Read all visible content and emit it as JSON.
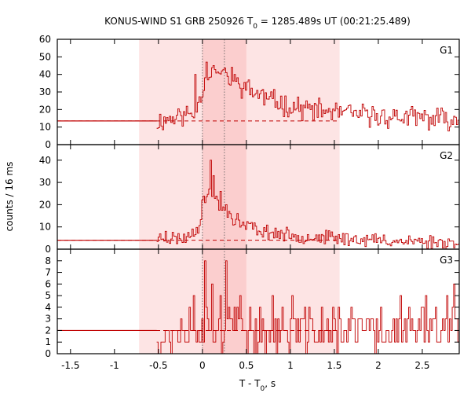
{
  "chart_data": {
    "type": "line",
    "title": "KONUS-WIND S1 GRB 250926 T",
    "title_sub": "0",
    "title_rest": " = 1285.489s UT (00:21:25.489)",
    "xlabel": "T - T",
    "xlabel_sub": "0",
    "xlabel_rest": ", s",
    "ylabel": "counts / 16 ms",
    "xlim": [
      -1.65,
      2.92
    ],
    "x_ticks": [
      -1.5,
      -1,
      -0.5,
      0,
      0.5,
      1,
      1.5,
      2,
      2.5
    ],
    "x_tick_labels": [
      "-1.5",
      "-1",
      "-0.5",
      "0",
      "0.5",
      "1",
      "1.5",
      "2",
      "2.5"
    ],
    "shading": {
      "outer_interval": [
        -0.72,
        1.56
      ],
      "inner_interval": [
        0.0,
        0.5
      ],
      "outer_color": "#fde4e4",
      "inner_color": "#fbcece"
    },
    "vertical_markers": [
      0.0,
      0.25
    ],
    "line_color": "#c00000",
    "panels": [
      {
        "name": "G1",
        "ylim": [
          0,
          60
        ],
        "y_ticks": [
          0,
          10,
          20,
          30,
          40,
          50,
          60
        ],
        "y_tick_labels": [
          "0",
          "10",
          "20",
          "30",
          "40",
          "50",
          "60"
        ],
        "background_level": 13.5,
        "data_start": -0.52,
        "key_points": [
          [
            -0.52,
            13
          ],
          [
            -0.3,
            16
          ],
          [
            -0.1,
            18
          ],
          [
            0.0,
            33
          ],
          [
            0.08,
            42
          ],
          [
            0.16,
            40
          ],
          [
            0.28,
            38
          ],
          [
            0.4,
            34
          ],
          [
            0.5,
            32
          ],
          [
            0.7,
            27
          ],
          [
            0.9,
            23
          ],
          [
            1.2,
            20
          ],
          [
            1.56,
            18
          ],
          [
            2.0,
            16
          ],
          [
            2.5,
            15
          ],
          [
            2.92,
            14
          ]
        ],
        "noise_amp": 5,
        "spikes": [
          [
            -0.08,
            40
          ],
          [
            0.04,
            47
          ],
          [
            0.12,
            45
          ],
          [
            0.22,
            42
          ],
          [
            0.33,
            44
          ],
          [
            0.38,
            36
          ],
          [
            0.45,
            32
          ]
        ],
        "seed": 11
      },
      {
        "name": "G2",
        "ylim": [
          0,
          47
        ],
        "y_ticks": [
          0,
          10,
          20,
          30,
          40
        ],
        "y_tick_labels": [
          "0",
          "10",
          "20",
          "30",
          "40"
        ],
        "background_level": 4,
        "data_start": -0.52,
        "key_points": [
          [
            -0.52,
            5
          ],
          [
            -0.2,
            5
          ],
          [
            -0.05,
            10
          ],
          [
            0.0,
            22
          ],
          [
            0.08,
            26
          ],
          [
            0.15,
            22
          ],
          [
            0.25,
            17
          ],
          [
            0.35,
            13
          ],
          [
            0.5,
            10
          ],
          [
            0.7,
            8
          ],
          [
            1.0,
            6
          ],
          [
            1.5,
            5
          ],
          [
            2.0,
            4
          ],
          [
            2.92,
            3
          ]
        ],
        "noise_amp": 2.5,
        "spikes": [
          [
            0.09,
            40
          ],
          [
            0.12,
            33
          ],
          [
            0.2,
            26
          ],
          [
            0.26,
            20
          ],
          [
            0.3,
            17
          ],
          [
            0.4,
            16
          ],
          [
            0.55,
            12
          ],
          [
            -0.42,
            8
          ]
        ],
        "seed": 23
      },
      {
        "name": "G3",
        "ylim": [
          0,
          9
        ],
        "y_ticks": [
          0,
          1,
          2,
          3,
          4,
          5,
          6,
          7,
          8
        ],
        "y_tick_labels": [
          "0",
          "1",
          "2",
          "3",
          "4",
          "5",
          "6",
          "7",
          "8"
        ],
        "background_level": 2,
        "data_start": -0.52,
        "key_points": [
          [
            -0.52,
            1.5
          ],
          [
            0.0,
            2.5
          ],
          [
            0.3,
            2.3
          ],
          [
            0.6,
            2
          ],
          [
            1.0,
            2
          ],
          [
            2.92,
            2
          ]
        ],
        "noise_amp": 1.6,
        "spikes": [
          [
            0.02,
            8
          ],
          [
            0.26,
            8
          ],
          [
            -0.1,
            5
          ],
          [
            0.1,
            6
          ],
          [
            0.2,
            5
          ],
          [
            0.42,
            5
          ],
          [
            0.8,
            5
          ],
          [
            1.02,
            5
          ],
          [
            1.55,
            4
          ],
          [
            2.25,
            5
          ],
          [
            2.53,
            5
          ],
          [
            2.78,
            5
          ],
          [
            2.86,
            6
          ],
          [
            2.65,
            4
          ]
        ],
        "seed": 37
      }
    ]
  }
}
